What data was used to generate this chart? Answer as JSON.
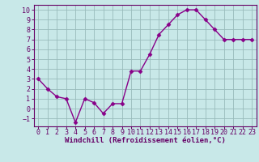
{
  "x": [
    0,
    1,
    2,
    3,
    4,
    5,
    6,
    7,
    8,
    9,
    10,
    11,
    12,
    13,
    14,
    15,
    16,
    17,
    18,
    19,
    20,
    21,
    22,
    23
  ],
  "y": [
    3.0,
    2.0,
    1.2,
    1.0,
    -1.4,
    1.0,
    0.6,
    -0.5,
    0.5,
    0.5,
    3.8,
    3.8,
    5.5,
    7.5,
    8.5,
    9.5,
    10.0,
    10.0,
    9.0,
    8.0,
    7.0,
    7.0,
    7.0,
    7.0
  ],
  "line_color": "#880088",
  "marker": "D",
  "marker_size": 2.5,
  "bg_color": "#c8e8e8",
  "grid_color": "#99bbbb",
  "xlabel": "Windchill (Refroidissement éolien,°C)",
  "ylabel": "",
  "xlim": [
    -0.5,
    23.5
  ],
  "ylim": [
    -1.8,
    10.5
  ],
  "yticks": [
    -1,
    0,
    1,
    2,
    3,
    4,
    5,
    6,
    7,
    8,
    9,
    10
  ],
  "xticks": [
    0,
    1,
    2,
    3,
    4,
    5,
    6,
    7,
    8,
    9,
    10,
    11,
    12,
    13,
    14,
    15,
    16,
    17,
    18,
    19,
    20,
    21,
    22,
    23
  ],
  "tick_label_color": "#660066",
  "xlabel_color": "#660066",
  "xlabel_fontsize": 6.5,
  "tick_fontsize": 6.0,
  "line_width": 1.0,
  "spine_color": "#660066"
}
